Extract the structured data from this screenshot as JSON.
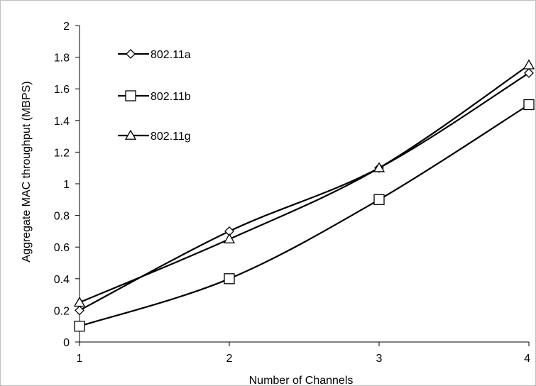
{
  "chart_data": {
    "type": "line",
    "title": "",
    "xlabel": "Number of Channels",
    "ylabel": "Aggregate MAC throughput (MBPS)",
    "x": [
      1,
      2,
      3,
      4
    ],
    "x_tick_labels": [
      "1",
      "2",
      "3",
      "4"
    ],
    "ylim": [
      0,
      2
    ],
    "y_tick_labels": [
      "0",
      "0.2",
      "0.4",
      "0.6",
      "0.8",
      "1",
      "1.2",
      "1.4",
      "1.6",
      "1.8",
      "2"
    ],
    "grid": false,
    "legend_position": "top-left",
    "line_style": "smooth",
    "colors": {
      "line": "#000000",
      "marker_fill": "#ffffff",
      "frame": "#bfbfbf"
    },
    "series": [
      {
        "name": "802.11a",
        "marker": "diamond",
        "values": [
          0.2,
          0.7,
          1.1,
          1.7
        ]
      },
      {
        "name": "802.11b",
        "marker": "square",
        "values": [
          0.1,
          0.4,
          0.9,
          1.5
        ]
      },
      {
        "name": "802.11g",
        "marker": "triangle",
        "values": [
          0.25,
          0.65,
          1.1,
          1.75
        ]
      }
    ]
  }
}
